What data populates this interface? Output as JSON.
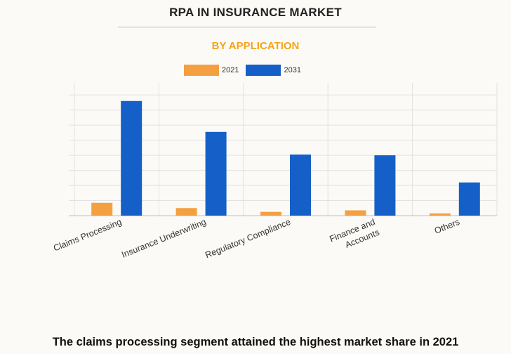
{
  "colors": {
    "series_2021": "#f4a040",
    "series_2031": "#1560c8"
  },
  "footer": "The claims processing segment attained the highest market share in 2021",
  "chart_data": {
    "type": "bar",
    "title": "RPA IN INSURANCE MARKET",
    "subtitle": "BY APPLICATION",
    "categories": [
      "Claims Processing",
      "Insurance Underwriting",
      "Regulatory Compliance",
      "Finance and Accounts",
      "Others"
    ],
    "series": [
      {
        "name": "2021",
        "color": "#f4a040",
        "values": [
          0.85,
          0.5,
          0.25,
          0.35,
          0.15
        ]
      },
      {
        "name": "2031",
        "color": "#1560c8",
        "values": [
          7.6,
          5.55,
          4.05,
          4.0,
          2.2
        ]
      }
    ],
    "ylim": [
      0,
      8.8
    ],
    "y_tick_step": 1,
    "y_tick_labels_shown": false,
    "legend_position": "top-center",
    "grid": true
  }
}
